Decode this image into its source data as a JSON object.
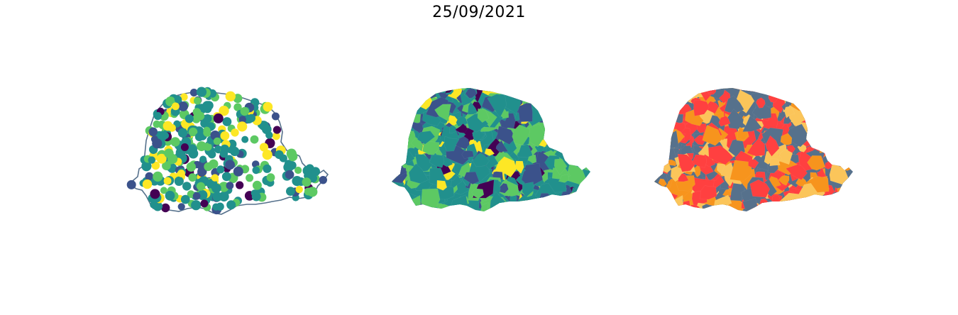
{
  "figure": {
    "title": "25/09/2021"
  },
  "panels": [
    {
      "kind": "points",
      "outline_color": "#56718c"
    },
    {
      "kind": "choropleth-continuous"
    },
    {
      "kind": "choropleth-categorical"
    }
  ],
  "palettes": {
    "viridis": [
      "#440154",
      "#3b528b",
      "#21908d",
      "#5dc963",
      "#fde725"
    ],
    "categorical": [
      "#ff4040",
      "#f7941d",
      "#fbc55a",
      "#56718c"
    ]
  }
}
